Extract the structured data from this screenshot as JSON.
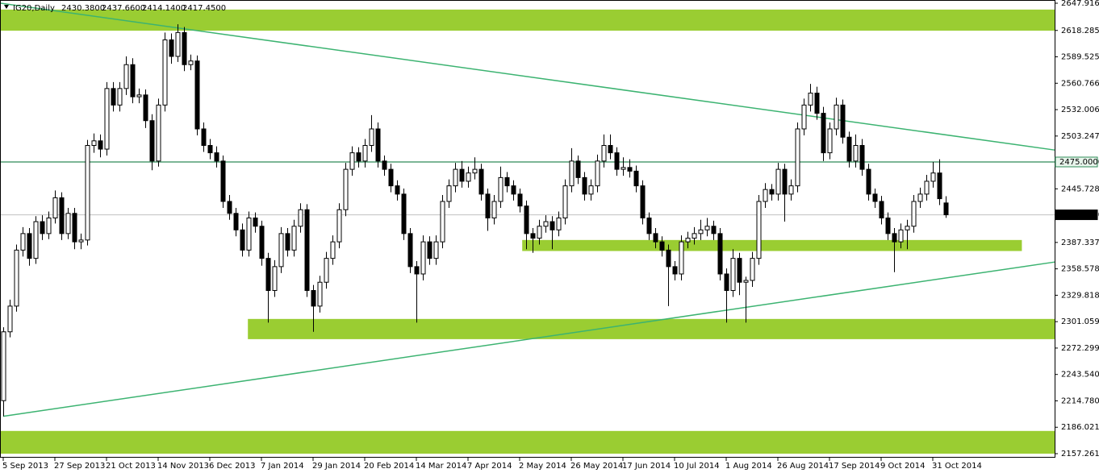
{
  "chart_data": {
    "type": "candlestick",
    "header": {
      "symbol": "IG20,Daily",
      "values": [
        "2430.3800",
        "2437.6600",
        "2414.1400",
        "2417.4500"
      ]
    },
    "ylim": [
      2157.261,
      2647.916
    ],
    "yticks": [
      {
        "value": 2647.916,
        "label": "2647.9160"
      },
      {
        "value": 2618.285,
        "label": "2618.2850"
      },
      {
        "value": 2589.5255,
        "label": "2589.5255"
      },
      {
        "value": 2560.766,
        "label": "2560.7660"
      },
      {
        "value": 2532.0065,
        "label": "2532.0065"
      },
      {
        "value": 2503.247,
        "label": "2503.2470"
      },
      {
        "value": 2445.728,
        "label": "2445.7280"
      },
      {
        "value": 2387.3375,
        "label": "2387.3375"
      },
      {
        "value": 2358.578,
        "label": "2358.5780"
      },
      {
        "value": 2329.8185,
        "label": "2329.8185"
      },
      {
        "value": 2301.059,
        "label": "2301.0590"
      },
      {
        "value": 2272.2995,
        "label": "2272.2995"
      },
      {
        "value": 2243.54,
        "label": "2243.5400"
      },
      {
        "value": 2214.7805,
        "label": "2214.7805"
      },
      {
        "value": 2186.021,
        "label": "2186.0210"
      },
      {
        "value": 2157.261,
        "label": "2157.2610"
      }
    ],
    "hlines": [
      {
        "value": 2475,
        "label": "2475.0000",
        "color": "#2e8b57"
      },
      {
        "value": 2417.45,
        "label": "2417.4500",
        "color": "#c0c0c0"
      }
    ],
    "zones": [
      {
        "from": 2618,
        "to": 2641,
        "start": -1,
        "end": 163.5,
        "color": "#9acd32"
      },
      {
        "from": 2378,
        "to": 2390,
        "start": 80.4,
        "end": 157.8,
        "color": "#9acd32"
      },
      {
        "from": 2282,
        "to": 2304,
        "start": 37.9,
        "end": 163.5,
        "color": "#9acd32"
      },
      {
        "from": 2157.261,
        "to": 2182,
        "start": -1,
        "end": 163.5,
        "color": "#9acd32"
      }
    ],
    "trendlines": [
      {
        "start": -0.5,
        "end": 163,
        "from": 2648,
        "to": 2488,
        "color": "#3cb371"
      },
      {
        "start": 0,
        "end": 163,
        "from": 2198,
        "to": 2366,
        "color": "#3cb371"
      }
    ],
    "categories": [
      "5 Sep 2013",
      null,
      null,
      null,
      null,
      null,
      null,
      null,
      "27 Sep 2013",
      null,
      null,
      null,
      null,
      null,
      null,
      null,
      "21 Oct 2013",
      null,
      null,
      null,
      null,
      null,
      null,
      null,
      "14 Nov 2013",
      null,
      null,
      null,
      null,
      null,
      null,
      null,
      "6 Dec 2013",
      null,
      null,
      null,
      null,
      null,
      null,
      null,
      "7 Jan 2014",
      null,
      null,
      null,
      null,
      null,
      null,
      null,
      "29 Jan 2014",
      null,
      null,
      null,
      null,
      null,
      null,
      null,
      "20 Feb 2014",
      null,
      null,
      null,
      null,
      null,
      null,
      null,
      "14 Mar 2014",
      null,
      null,
      null,
      null,
      null,
      null,
      null,
      "7 Apr 2014",
      null,
      null,
      null,
      null,
      null,
      null,
      null,
      "2 May 2014",
      null,
      null,
      null,
      null,
      null,
      null,
      null,
      "26 May 2014",
      null,
      null,
      null,
      null,
      null,
      null,
      null,
      "17 Jun 2014",
      null,
      null,
      null,
      null,
      null,
      null,
      null,
      "10 Jul 2014",
      null,
      null,
      null,
      null,
      null,
      null,
      null,
      "1 Aug 2014",
      null,
      null,
      null,
      null,
      null,
      null,
      null,
      "26 Aug 2014",
      null,
      null,
      null,
      null,
      null,
      null,
      null,
      "17 Sep 2014",
      null,
      null,
      null,
      null,
      null,
      null,
      null,
      "9 Oct 2014",
      null,
      null,
      null,
      null,
      null,
      null,
      null,
      "31 Oct 2014",
      null,
      null
    ],
    "ohlc": [
      [
        2215,
        2295,
        2198,
        2290
      ],
      [
        2290,
        2325,
        2284,
        2318
      ],
      [
        2318,
        2385,
        2312,
        2379
      ],
      [
        2379,
        2404,
        2372,
        2397
      ],
      [
        2397,
        2403,
        2362,
        2370
      ],
      [
        2370,
        2416,
        2364,
        2410
      ],
      [
        2410,
        2417,
        2390,
        2397
      ],
      [
        2397,
        2421,
        2391,
        2414
      ],
      [
        2414,
        2444,
        2408,
        2436
      ],
      [
        2436,
        2442,
        2390,
        2397
      ],
      [
        2397,
        2425,
        2391,
        2419
      ],
      [
        2419,
        2425,
        2380,
        2388
      ],
      [
        2388,
        2397,
        2380,
        2390
      ],
      [
        2390,
        2499,
        2384,
        2493
      ],
      [
        2493,
        2506,
        2485,
        2498
      ],
      [
        2498,
        2505,
        2480,
        2489
      ],
      [
        2489,
        2562,
        2482,
        2555
      ],
      [
        2555,
        2562,
        2530,
        2537
      ],
      [
        2537,
        2562,
        2530,
        2555
      ],
      [
        2555,
        2590,
        2548,
        2581
      ],
      [
        2581,
        2588,
        2539,
        2546
      ],
      [
        2546,
        2555,
        2539,
        2548
      ],
      [
        2548,
        2554,
        2512,
        2520
      ],
      [
        2520,
        2527,
        2466,
        2476
      ],
      [
        2476,
        2544,
        2470,
        2537
      ],
      [
        2537,
        2616,
        2530,
        2608
      ],
      [
        2608,
        2615,
        2582,
        2590
      ],
      [
        2590,
        2625,
        2584,
        2616
      ],
      [
        2616,
        2622,
        2574,
        2581
      ],
      [
        2581,
        2592,
        2575,
        2585
      ],
      [
        2585,
        2591,
        2504,
        2511
      ],
      [
        2511,
        2518,
        2486,
        2493
      ],
      [
        2493,
        2500,
        2478,
        2485
      ],
      [
        2485,
        2492,
        2469,
        2476
      ],
      [
        2476,
        2482,
        2425,
        2432
      ],
      [
        2432,
        2439,
        2412,
        2419
      ],
      [
        2419,
        2425,
        2394,
        2401
      ],
      [
        2401,
        2408,
        2372,
        2379
      ],
      [
        2379,
        2421,
        2372,
        2414
      ],
      [
        2414,
        2420,
        2398,
        2405
      ],
      [
        2405,
        2411,
        2362,
        2370
      ],
      [
        2370,
        2376,
        2300,
        2335
      ],
      [
        2335,
        2368,
        2328,
        2361
      ],
      [
        2361,
        2404,
        2354,
        2397
      ],
      [
        2397,
        2403,
        2372,
        2379
      ],
      [
        2379,
        2412,
        2372,
        2405
      ],
      [
        2405,
        2430,
        2398,
        2423
      ],
      [
        2423,
        2429,
        2328,
        2335
      ],
      [
        2335,
        2341,
        2290,
        2318
      ],
      [
        2318,
        2351,
        2311,
        2344
      ],
      [
        2344,
        2377,
        2337,
        2370
      ],
      [
        2370,
        2395,
        2363,
        2388
      ],
      [
        2388,
        2430,
        2381,
        2423
      ],
      [
        2423,
        2474,
        2416,
        2467
      ],
      [
        2467,
        2492,
        2460,
        2485
      ],
      [
        2485,
        2491,
        2469,
        2476
      ],
      [
        2476,
        2500,
        2469,
        2493
      ],
      [
        2493,
        2526,
        2486,
        2511
      ],
      [
        2511,
        2518,
        2469,
        2476
      ],
      [
        2476,
        2482,
        2460,
        2467
      ],
      [
        2467,
        2473,
        2442,
        2449
      ],
      [
        2449,
        2455,
        2433,
        2440
      ],
      [
        2440,
        2446,
        2390,
        2397
      ],
      [
        2397,
        2403,
        2354,
        2361
      ],
      [
        2361,
        2367,
        2300,
        2353
      ],
      [
        2353,
        2395,
        2346,
        2388
      ],
      [
        2388,
        2394,
        2363,
        2370
      ],
      [
        2370,
        2395,
        2363,
        2388
      ],
      [
        2388,
        2439,
        2381,
        2432
      ],
      [
        2432,
        2456,
        2425,
        2449
      ],
      [
        2449,
        2474,
        2442,
        2467
      ],
      [
        2467,
        2476,
        2447,
        2454
      ],
      [
        2454,
        2470,
        2447,
        2463
      ],
      [
        2463,
        2480,
        2456,
        2467
      ],
      [
        2467,
        2473,
        2433,
        2440
      ],
      [
        2440,
        2446,
        2400,
        2414
      ],
      [
        2414,
        2439,
        2407,
        2432
      ],
      [
        2432,
        2470,
        2425,
        2458
      ],
      [
        2458,
        2464,
        2442,
        2449
      ],
      [
        2449,
        2455,
        2433,
        2440
      ],
      [
        2440,
        2446,
        2420,
        2427
      ],
      [
        2427,
        2433,
        2380,
        2397
      ],
      [
        2397,
        2403,
        2376,
        2392
      ],
      [
        2392,
        2412,
        2385,
        2405
      ],
      [
        2405,
        2417,
        2398,
        2410
      ],
      [
        2410,
        2416,
        2380,
        2401
      ],
      [
        2401,
        2421,
        2394,
        2414
      ],
      [
        2414,
        2456,
        2407,
        2449
      ],
      [
        2449,
        2490,
        2442,
        2476
      ],
      [
        2476,
        2482,
        2451,
        2458
      ],
      [
        2458,
        2464,
        2433,
        2440
      ],
      [
        2440,
        2456,
        2433,
        2449
      ],
      [
        2449,
        2483,
        2442,
        2476
      ],
      [
        2476,
        2505,
        2469,
        2493
      ],
      [
        2493,
        2505,
        2478,
        2485
      ],
      [
        2485,
        2491,
        2460,
        2467
      ],
      [
        2467,
        2480,
        2460,
        2469
      ],
      [
        2469,
        2478,
        2458,
        2465
      ],
      [
        2465,
        2471,
        2442,
        2449
      ],
      [
        2449,
        2455,
        2407,
        2414
      ],
      [
        2414,
        2420,
        2390,
        2397
      ],
      [
        2397,
        2403,
        2381,
        2388
      ],
      [
        2388,
        2394,
        2372,
        2379
      ],
      [
        2379,
        2385,
        2318,
        2361
      ],
      [
        2361,
        2367,
        2346,
        2353
      ],
      [
        2353,
        2395,
        2346,
        2388
      ],
      [
        2388,
        2399,
        2381,
        2392
      ],
      [
        2392,
        2404,
        2385,
        2397
      ],
      [
        2397,
        2412,
        2390,
        2401
      ],
      [
        2401,
        2414,
        2394,
        2405
      ],
      [
        2405,
        2411,
        2390,
        2397
      ],
      [
        2397,
        2403,
        2346,
        2353
      ],
      [
        2353,
        2359,
        2300,
        2335
      ],
      [
        2335,
        2380,
        2328,
        2370
      ],
      [
        2370,
        2376,
        2330,
        2344
      ],
      [
        2344,
        2350,
        2300,
        2346
      ],
      [
        2346,
        2377,
        2339,
        2370
      ],
      [
        2370,
        2439,
        2363,
        2432
      ],
      [
        2432,
        2452,
        2425,
        2445
      ],
      [
        2445,
        2451,
        2433,
        2440
      ],
      [
        2440,
        2474,
        2433,
        2467
      ],
      [
        2467,
        2473,
        2410,
        2440
      ],
      [
        2440,
        2456,
        2433,
        2449
      ],
      [
        2449,
        2518,
        2442,
        2511
      ],
      [
        2511,
        2544,
        2504,
        2537
      ],
      [
        2537,
        2560,
        2530,
        2550
      ],
      [
        2550,
        2557,
        2521,
        2528
      ],
      [
        2528,
        2535,
        2476,
        2485
      ],
      [
        2485,
        2518,
        2478,
        2511
      ],
      [
        2511,
        2545,
        2504,
        2537
      ],
      [
        2537,
        2543,
        2495,
        2502
      ],
      [
        2502,
        2508,
        2469,
        2476
      ],
      [
        2476,
        2505,
        2469,
        2493
      ],
      [
        2493,
        2500,
        2460,
        2467
      ],
      [
        2467,
        2473,
        2433,
        2440
      ],
      [
        2440,
        2446,
        2425,
        2432
      ],
      [
        2432,
        2438,
        2407,
        2414
      ],
      [
        2414,
        2420,
        2390,
        2397
      ],
      [
        2397,
        2403,
        2355,
        2388
      ],
      [
        2388,
        2408,
        2381,
        2401
      ],
      [
        2401,
        2412,
        2380,
        2405
      ],
      [
        2405,
        2439,
        2398,
        2432
      ],
      [
        2432,
        2447,
        2425,
        2440
      ],
      [
        2440,
        2461,
        2433,
        2454
      ],
      [
        2454,
        2475,
        2447,
        2463
      ],
      [
        2463,
        2478,
        2428,
        2435
      ],
      [
        2430.38,
        2437.66,
        2414.14,
        2417.45
      ]
    ]
  }
}
